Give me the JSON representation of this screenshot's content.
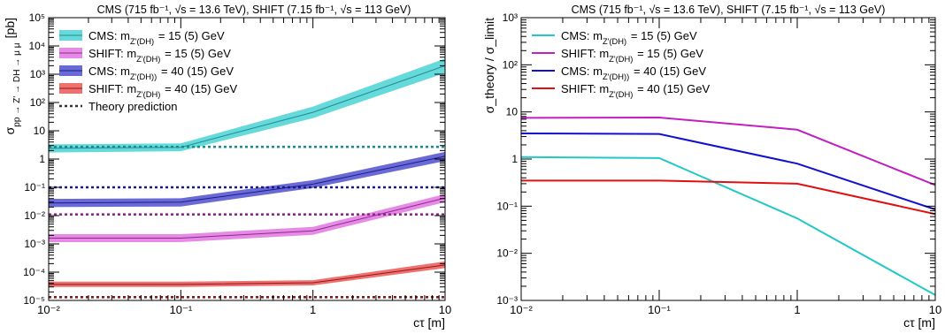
{
  "chart_data": [
    {
      "type": "line",
      "title": "CMS (715 fb⁻¹, √s = 13.6 TeV), SHIFT (7.15 fb⁻¹, √s = 113 GeV)",
      "xlabel": "cτ [m]",
      "ylabel": "σ_{pp → Z' → DH → μ μ} [pb]",
      "xscale": "log",
      "yscale": "log",
      "xlim": [
        0.01,
        10
      ],
      "ylim": [
        1e-05,
        100000
      ],
      "x_ticks": [
        "10⁻²",
        "10⁻¹",
        "1",
        "10"
      ],
      "y_ticks": [
        "10⁻⁵",
        "10⁻⁴",
        "10⁻³",
        "10⁻²",
        "10⁻¹",
        "1",
        "10",
        "10²",
        "10³",
        "10⁴",
        "10⁵"
      ],
      "legend_position": "top-left",
      "series": [
        {
          "name": "CMS: m_{Z'(DH)} = 15 (5) GeV",
          "color": "#1f8c8c",
          "band_color": "#66dada",
          "x": [
            0.01,
            0.1,
            1,
            10
          ],
          "values": [
            2.4,
            2.6,
            45,
            2000
          ],
          "band_lo": [
            1.7,
            1.9,
            28,
            1100
          ],
          "band_hi": [
            3.3,
            3.6,
            72,
            3600
          ]
        },
        {
          "name": "SHIFT: m_{Z'(DH)} = 15 (5) GeV",
          "color": "#8a2a8a",
          "band_color": "#e68ae6",
          "x": [
            0.01,
            0.1,
            1,
            10
          ],
          "values": [
            0.0016,
            0.0016,
            0.0029,
            0.042
          ],
          "band_lo": [
            0.00115,
            0.00115,
            0.0021,
            0.03
          ],
          "band_hi": [
            0.0022,
            0.0022,
            0.004,
            0.058
          ]
        },
        {
          "name": "CMS: m_{Z'(DH))} = 40 (15) GeV",
          "color": "#1a1a8a",
          "band_color": "#6a6ad6",
          "x": [
            0.01,
            0.1,
            1,
            10
          ],
          "values": [
            0.028,
            0.03,
            0.13,
            1.25
          ],
          "band_lo": [
            0.02,
            0.021,
            0.095,
            0.85
          ],
          "band_hi": [
            0.039,
            0.041,
            0.18,
            1.8
          ]
        },
        {
          "name": "SHIFT: m_{Z'(DH)} = 40 (15) GeV",
          "color": "#8a1a1a",
          "band_color": "#f07070",
          "x": [
            0.01,
            0.1,
            1,
            10
          ],
          "values": [
            3.7e-05,
            3.7e-05,
            4.2e-05,
            0.00018
          ],
          "band_lo": [
            3e-05,
            3e-05,
            3.4e-05,
            0.00014
          ],
          "band_hi": [
            4.6e-05,
            4.6e-05,
            5.2e-05,
            0.00024
          ]
        },
        {
          "name": "Theory prediction",
          "style": "dotted",
          "color": "#333333",
          "lines": [
            {
              "value": 2.7,
              "color": "#1f8c8c"
            },
            {
              "value": 0.011,
              "color": "#8a2a8a"
            },
            {
              "value": 0.1,
              "color": "#1a1a8a"
            },
            {
              "value": 1.3e-05,
              "color": "#8a1a1a"
            }
          ]
        }
      ]
    },
    {
      "type": "line",
      "title": "CMS (715 fb⁻¹, √s = 13.6 TeV), SHIFT (7.15 fb⁻¹, √s = 113 GeV)",
      "xlabel": "cτ [m]",
      "ylabel": "σ_theory / σ_limit",
      "xscale": "log",
      "yscale": "log",
      "xlim": [
        0.01,
        10
      ],
      "ylim": [
        0.001,
        1000
      ],
      "x_ticks": [
        "10⁻²",
        "10⁻¹",
        "1",
        "10"
      ],
      "y_ticks": [
        "10⁻³",
        "10⁻²",
        "10⁻¹",
        "1",
        "10",
        "10²",
        "10³"
      ],
      "legend_position": "top-left",
      "series": [
        {
          "name": "CMS: m_{Z'(DH)} = 15 (5) GeV",
          "color": "#22c8c8",
          "x": [
            0.01,
            0.1,
            1,
            10
          ],
          "values": [
            1.1,
            1.05,
            0.055,
            0.0013
          ]
        },
        {
          "name": "SHIFT: m_{Z'(DH)} = 15 (5) GeV",
          "color": "#c020c0",
          "x": [
            0.01,
            0.1,
            1,
            10
          ],
          "values": [
            7.5,
            7.6,
            4.2,
            0.28
          ]
        },
        {
          "name": "CMS: m_{Z'(DH))} = 40 (15) GeV",
          "color": "#1010d0",
          "x": [
            0.01,
            0.1,
            1,
            10
          ],
          "values": [
            3.5,
            3.4,
            0.8,
            0.085
          ]
        },
        {
          "name": "SHIFT: m_{Z'(DH)} = 40 (15) GeV",
          "color": "#e01010",
          "x": [
            0.01,
            0.1,
            1,
            10
          ],
          "values": [
            0.35,
            0.35,
            0.3,
            0.068
          ]
        }
      ]
    }
  ]
}
